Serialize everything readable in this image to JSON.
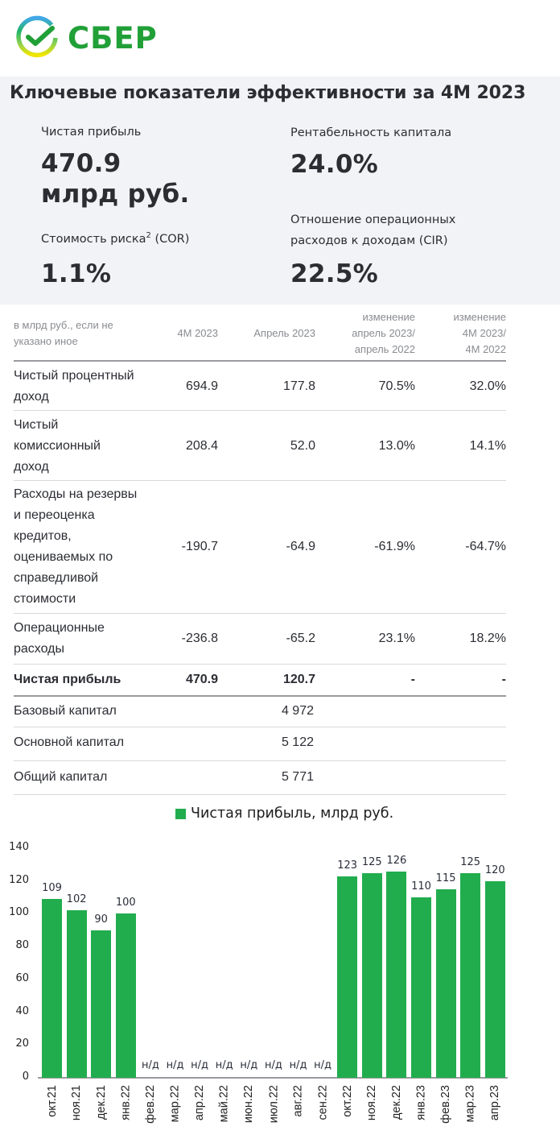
{
  "logo": {
    "text": "СБЕР",
    "icon": "sber-check-ring-icon",
    "brand_color": "#21a038"
  },
  "kpi": {
    "title": "Ключевые показатели эффективности за 4М 2023",
    "items": [
      {
        "label": "Чистая прибыль",
        "value_line1": "470.9",
        "value_line2": "млрд руб."
      },
      {
        "label": "Рентабельность капитала",
        "value": "24.0%"
      },
      {
        "label_main": "Стоимость риска",
        "label_sup": "2",
        "label_tail": " (COR)",
        "value": "1.1%"
      },
      {
        "label_line1": "Отношение операционных",
        "label_line2": "расходов к доходам (CIR)",
        "value": "22.5%"
      }
    ]
  },
  "table": {
    "header": {
      "col0": [
        "в млрд руб., если не",
        "указано иное"
      ],
      "col1": "4М 2023",
      "col2": "Апрель 2023",
      "col3": [
        "изменение",
        "апрель 2023/",
        "апрель 2022"
      ],
      "col4": [
        "изменение",
        "4М 2023/",
        "4М 2022"
      ]
    },
    "rows": [
      {
        "label": [
          "Чистый процентный",
          "доход"
        ],
        "m4_2023": "694.9",
        "apr_2023": "177.8",
        "chg_apr": "70.5%",
        "chg_4m": "32.0%"
      },
      {
        "label": [
          "Чистый",
          "комиссионный",
          "доход"
        ],
        "m4_2023": "208.4",
        "apr_2023": "52.0",
        "chg_apr": "13.0%",
        "chg_4m": "14.1%"
      },
      {
        "label": [
          "Расходы на резервы",
          "и переоценка",
          "кредитов,",
          "оцениваемых по",
          "справедливой",
          "стоимости"
        ],
        "m4_2023": "-190.7",
        "apr_2023": "-64.9",
        "chg_apr": "-61.9%",
        "chg_4m": "-64.7%"
      },
      {
        "label": [
          "Операционные",
          "расходы"
        ],
        "m4_2023": "-236.8",
        "apr_2023": "-65.2",
        "chg_apr": "23.1%",
        "chg_4m": "18.2%"
      },
      {
        "label": [
          "Чистая прибыль"
        ],
        "m4_2023": "470.9",
        "apr_2023": "120.7",
        "chg_apr": "-",
        "chg_4m": "-",
        "bold": true
      },
      {
        "label": [
          "Базовый капитал"
        ],
        "apr_2023": "4 972"
      },
      {
        "label": [
          "Основной капитал"
        ],
        "apr_2023": "5 122"
      },
      {
        "label": [
          "Общий капитал"
        ],
        "apr_2023": "5 771"
      }
    ]
  },
  "chart_data": {
    "type": "bar",
    "title": "",
    "legend": [
      "Чистая прибыль, млрд руб."
    ],
    "legend_position": "top",
    "bar_color": "#21ad4e",
    "xlabel": "",
    "ylabel": "",
    "ylim": [
      0,
      140
    ],
    "yticks": [
      "0",
      "20",
      "40",
      "60",
      "80",
      "100",
      "120",
      "140"
    ],
    "grid": false,
    "categories": [
      "окт.21",
      "ноя.21",
      "дек.21",
      "янв.22",
      "фев.22",
      "мар.22",
      "апр.22",
      "май.22",
      "июн.22",
      "июл.22",
      "авг.22",
      "сен.22",
      "окт.22",
      "ноя.22",
      "дек.22",
      "янв.23",
      "фев.23",
      "мар.23",
      "апр.23"
    ],
    "values": [
      109,
      102,
      90,
      100,
      null,
      null,
      null,
      null,
      null,
      null,
      null,
      null,
      123,
      125,
      126,
      110,
      115,
      125,
      120
    ],
    "data_labels": [
      "109",
      "102",
      "90",
      "100",
      "н/д",
      "н/д",
      "н/д",
      "н/д",
      "н/д",
      "н/д",
      "н/д",
      "н/д",
      "123",
      "125",
      "126",
      "110",
      "115",
      "125",
      "120"
    ]
  }
}
